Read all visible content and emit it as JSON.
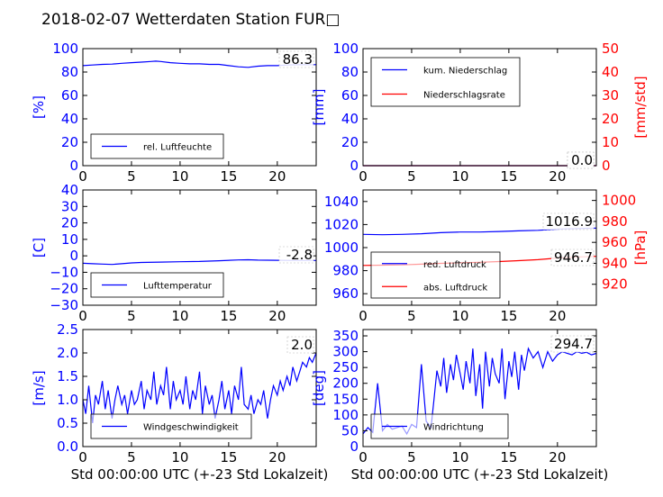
{
  "title": "2018-02-07 Wetterdaten Station FUR□",
  "colors": {
    "blue": "#0000ff",
    "red": "#ff0000",
    "black": "#000000"
  },
  "chart_data": [
    {
      "id": "p1",
      "type": "line",
      "xlim": [
        0,
        24
      ],
      "xticks": [
        0,
        5,
        10,
        15,
        20
      ],
      "ylim": [
        0,
        100
      ],
      "yticks": [
        0,
        20,
        40,
        60,
        80,
        100
      ],
      "ylabel": "[%]",
      "xlabel": "",
      "latest": "86.3",
      "legend_position": "lower-left",
      "series": [
        {
          "name": "rel. Luftfeuchte",
          "color": "#0000ff",
          "axis": "left",
          "x": [
            0,
            1,
            2,
            3,
            4,
            5,
            6,
            7,
            7.5,
            8,
            9,
            10,
            11,
            12,
            13,
            14,
            15,
            16,
            17,
            18,
            19,
            20,
            21,
            22,
            23,
            24
          ],
          "y": [
            85.5,
            86,
            86.5,
            86.8,
            87.5,
            88,
            88.5,
            89,
            89.3,
            89,
            88,
            87.5,
            87,
            87,
            86.5,
            86.5,
            85.5,
            84.5,
            84,
            85,
            85.5,
            85.5,
            86,
            86.2,
            86.3,
            86.3
          ]
        }
      ]
    },
    {
      "id": "p2",
      "type": "line",
      "xlim": [
        0,
        24
      ],
      "xticks": [
        0,
        5,
        10,
        15,
        20
      ],
      "ylim": [
        0,
        100
      ],
      "yticks": [
        0,
        20,
        40,
        60,
        80,
        100
      ],
      "ylim2": [
        0,
        50
      ],
      "yticks2": [
        0,
        10,
        20,
        30,
        40,
        50
      ],
      "ylabel": "[mm]",
      "ylabel2": "[mm/std]",
      "xlabel": "",
      "latest": "0.0",
      "latest2": "0.0",
      "legend_position": "upper-left",
      "series": [
        {
          "name": "kum. Niederschlag",
          "color": "#0000ff",
          "axis": "left",
          "x": [
            0,
            24
          ],
          "y": [
            0,
            0
          ]
        },
        {
          "name": "Niederschlagsrate",
          "color": "#ff0000",
          "axis": "right",
          "x": [
            0,
            24
          ],
          "y": [
            0,
            0
          ]
        }
      ]
    },
    {
      "id": "p3",
      "type": "line",
      "xlim": [
        0,
        24
      ],
      "xticks": [
        0,
        5,
        10,
        15,
        20
      ],
      "ylim": [
        -30,
        40
      ],
      "yticks": [
        -30,
        -20,
        -10,
        0,
        10,
        20,
        30,
        40
      ],
      "ylabel": "[C]",
      "xlabel": "",
      "latest": "-2.8",
      "legend_position": "lower-left",
      "series": [
        {
          "name": "Lufttemperatur",
          "color": "#0000ff",
          "axis": "left",
          "x": [
            0,
            1,
            2,
            3,
            4,
            5,
            6,
            8,
            10,
            12,
            14,
            16,
            17,
            18,
            20,
            22,
            24
          ],
          "y": [
            -4.5,
            -4.8,
            -5,
            -5.2,
            -4.8,
            -4.3,
            -4,
            -3.8,
            -3.6,
            -3.4,
            -3,
            -2.5,
            -2.4,
            -2.6,
            -2.7,
            -2.8,
            -2.8
          ]
        }
      ]
    },
    {
      "id": "p4",
      "type": "line",
      "xlim": [
        0,
        24
      ],
      "xticks": [
        0,
        5,
        10,
        15,
        20
      ],
      "ylim": [
        950,
        1050
      ],
      "yticks": [
        960,
        980,
        1000,
        1020,
        1040
      ],
      "ylim2": [
        900,
        1010
      ],
      "yticks2": [
        920,
        940,
        960,
        980,
        1000
      ],
      "ylabel": "",
      "ylabel2": "[hPa]",
      "xlabel": "",
      "latest": "1016.9",
      "latest2": "946.7",
      "legend_position": "lower-left",
      "series": [
        {
          "name": "red. Luftdruck",
          "color": "#0000ff",
          "axis": "left",
          "x": [
            0,
            2,
            4,
            6,
            8,
            10,
            12,
            14,
            16,
            18,
            20,
            22,
            24
          ],
          "y": [
            1011.5,
            1011.2,
            1011.5,
            1012,
            1013,
            1013.5,
            1013.5,
            1014,
            1014.5,
            1015,
            1016,
            1016.5,
            1016.9
          ]
        },
        {
          "name": "abs. Luftdruck",
          "color": "#ff0000",
          "axis": "right",
          "x": [
            0,
            2,
            4,
            6,
            8,
            10,
            12,
            14,
            16,
            18,
            20,
            22,
            24
          ],
          "y": [
            938,
            938.2,
            938.5,
            939.2,
            940,
            940.5,
            941,
            941.7,
            942.5,
            943.5,
            945,
            946,
            946.7
          ]
        }
      ]
    },
    {
      "id": "p5",
      "type": "line",
      "xlim": [
        0,
        24
      ],
      "xticks": [
        0,
        5,
        10,
        15,
        20
      ],
      "ylim": [
        0,
        2.5
      ],
      "yticks": [
        0.0,
        0.5,
        1.0,
        1.5,
        2.0,
        2.5
      ],
      "ylabel": "[m/s]",
      "xlabel": "Std 00:00:00 UTC (+-23 Std Lokalzeit)",
      "latest": "2.0",
      "legend_position": "lower-left",
      "series": [
        {
          "name": "Windgeschwindigkeit",
          "color": "#0000ff",
          "axis": "left",
          "x": [
            0,
            0.3,
            0.6,
            1,
            1.3,
            1.6,
            2,
            2.3,
            2.6,
            3,
            3.3,
            3.6,
            4,
            4.3,
            4.6,
            5,
            5.3,
            5.6,
            6,
            6.3,
            6.6,
            7,
            7.3,
            7.6,
            8,
            8.3,
            8.6,
            9,
            9.3,
            9.6,
            10,
            10.3,
            10.6,
            11,
            11.3,
            11.6,
            12,
            12.3,
            12.6,
            13,
            13.3,
            13.6,
            14,
            14.3,
            14.6,
            15,
            15.3,
            15.6,
            16,
            16.3,
            16.6,
            17,
            17.3,
            17.6,
            18,
            18.3,
            18.6,
            19,
            19.3,
            19.6,
            20,
            20.3,
            20.6,
            21,
            21.3,
            21.6,
            22,
            22.3,
            22.6,
            23,
            23.3,
            23.6,
            24
          ],
          "y": [
            1.0,
            0.7,
            1.3,
            0.5,
            1.1,
            0.9,
            1.4,
            0.8,
            1.2,
            0.6,
            1.0,
            1.3,
            0.9,
            1.1,
            0.7,
            1.2,
            0.9,
            1.0,
            1.4,
            0.8,
            1.2,
            1.0,
            1.6,
            0.9,
            1.3,
            1.1,
            1.7,
            0.8,
            1.4,
            1.0,
            1.2,
            0.9,
            1.5,
            0.8,
            1.2,
            1.0,
            1.6,
            0.7,
            1.3,
            0.9,
            1.1,
            0.6,
            1.0,
            1.4,
            0.8,
            1.2,
            0.7,
            1.3,
            1.0,
            1.7,
            0.9,
            0.8,
            1.1,
            0.7,
            1.0,
            0.9,
            1.2,
            0.6,
            1.0,
            1.3,
            1.1,
            1.4,
            1.2,
            1.5,
            1.3,
            1.7,
            1.4,
            1.6,
            1.8,
            1.7,
            1.9,
            1.8,
            2.0
          ]
        }
      ]
    },
    {
      "id": "p6",
      "type": "line",
      "xlim": [
        0,
        24
      ],
      "xticks": [
        0,
        5,
        10,
        15,
        20
      ],
      "ylim": [
        0,
        370
      ],
      "yticks": [
        0,
        50,
        100,
        150,
        200,
        250,
        300,
        350
      ],
      "ylabel": "[deg]",
      "xlabel": "Std 00:00:00 UTC (+-23 Std Lokalzeit)",
      "latest": "294.7",
      "legend_position": "lower-left",
      "series": [
        {
          "name": "Windrichtung",
          "color": "#0000ff",
          "axis": "left",
          "x": [
            0,
            0.5,
            1,
            1.5,
            2,
            2.5,
            3,
            3.5,
            4,
            4.5,
            5,
            5.5,
            6,
            6.5,
            7,
            7.3,
            7.6,
            8,
            8.3,
            8.6,
            9,
            9.3,
            9.6,
            10,
            10.3,
            10.6,
            11,
            11.3,
            11.6,
            12,
            12.3,
            12.6,
            13,
            13.3,
            13.6,
            14,
            14.3,
            14.6,
            15,
            15.3,
            15.6,
            16,
            16.3,
            16.6,
            17,
            17.5,
            18,
            18.5,
            19,
            19.5,
            20,
            20.5,
            21,
            21.5,
            22,
            22.5,
            23,
            23.5,
            24
          ],
          "y": [
            40,
            60,
            45,
            200,
            50,
            70,
            55,
            60,
            65,
            40,
            70,
            60,
            260,
            80,
            60,
            150,
            240,
            190,
            280,
            170,
            260,
            210,
            290,
            230,
            180,
            270,
            200,
            310,
            160,
            260,
            120,
            300,
            190,
            280,
            230,
            200,
            310,
            150,
            270,
            220,
            300,
            180,
            290,
            240,
            310,
            280,
            300,
            250,
            300,
            270,
            290,
            300,
            295,
            290,
            300,
            295,
            298,
            290,
            294.7
          ]
        }
      ]
    }
  ]
}
